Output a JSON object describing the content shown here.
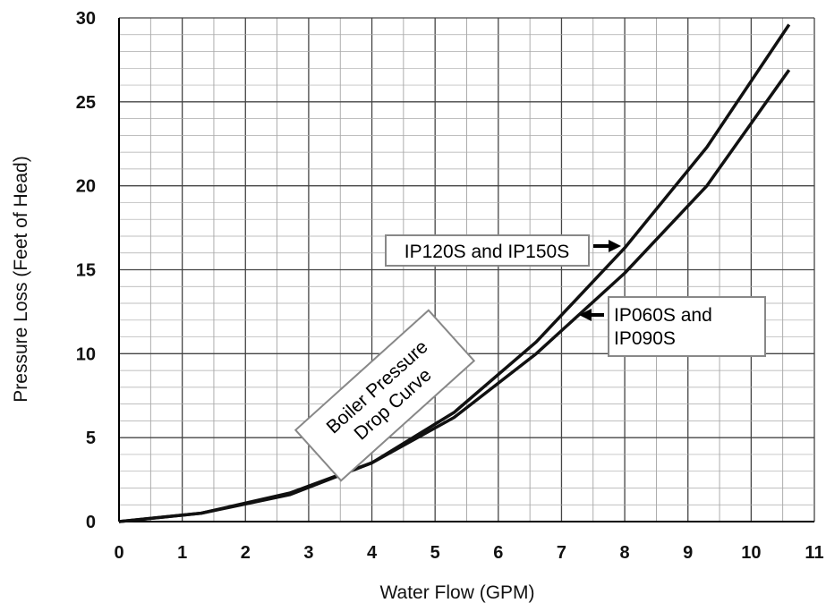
{
  "chart_data": {
    "type": "line",
    "title": "",
    "xlabel": "Water Flow (GPM)",
    "ylabel": "Pressure Loss (Feet of Head)",
    "xlim": [
      0,
      11
    ],
    "ylim": [
      0,
      30
    ],
    "xticks": [
      "0",
      "1",
      "2",
      "3",
      "4",
      "5",
      "6",
      "7",
      "8",
      "9",
      "10",
      "11"
    ],
    "yticks": [
      "0",
      "5",
      "10",
      "15",
      "20",
      "25",
      "30"
    ],
    "grid": true,
    "series": [
      {
        "name": "IP120S and IP150S",
        "x": [
          0,
          1.3,
          2.7,
          4.0,
          5.3,
          6.6,
          8.0,
          9.3,
          10.6
        ],
        "y": [
          0,
          0.5,
          1.7,
          3.5,
          6.5,
          10.7,
          16.3,
          22.3,
          29.6
        ]
      },
      {
        "name": "IP060S and IP090S",
        "x": [
          0,
          1.3,
          2.7,
          4.0,
          5.3,
          6.6,
          8.0,
          9.3,
          10.6
        ],
        "y": [
          0,
          0.5,
          1.6,
          3.5,
          6.2,
          10.0,
          14.8,
          20.0,
          26.9
        ]
      }
    ],
    "annotations": {
      "upper_label": "IP120S and IP150S",
      "lower_label_line1": "IP060S and",
      "lower_label_line2": "IP090S",
      "curve_label_line1": "Boiler Pressure",
      "curve_label_line2": "Drop Curve"
    },
    "colors": {
      "line": "#111111",
      "grid": "#555555",
      "box_border": "#888888"
    }
  }
}
